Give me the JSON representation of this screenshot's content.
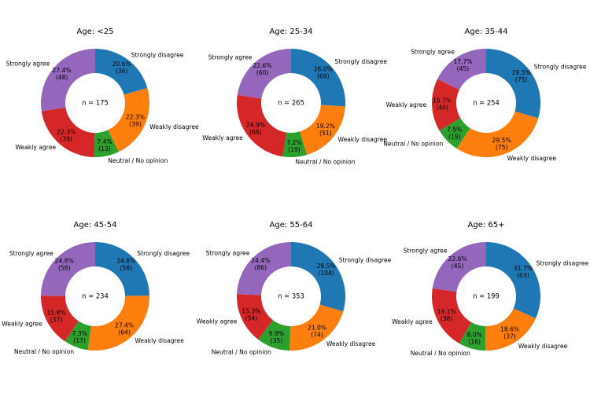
{
  "chart_data": [
    {
      "type": "pie",
      "title": "Age: <25",
      "center_label": "n = 175",
      "categories": [
        "Strongly disagree",
        "Weakly disagree",
        "Neutral / No opinion",
        "Weakly agree",
        "Strongly agree"
      ],
      "values": [
        36,
        39,
        13,
        39,
        48
      ],
      "percent_labels": [
        "20.6%",
        "22.3%",
        "7.4%",
        "22.3%",
        "27.4%"
      ],
      "count_labels": [
        "(36)",
        "(39)",
        "(13)",
        "(39)",
        "(48)"
      ]
    },
    {
      "type": "pie",
      "title": "Age: 25-34",
      "center_label": "n = 265",
      "categories": [
        "Strongly disagree",
        "Weakly disagree",
        "Neutral / No opinion",
        "Weakly agree",
        "Strongly agree"
      ],
      "values": [
        69,
        51,
        19,
        66,
        60
      ],
      "percent_labels": [
        "26.0%",
        "19.2%",
        "7.2%",
        "24.9%",
        "22.6%"
      ],
      "count_labels": [
        "(69)",
        "(51)",
        "(19)",
        "(66)",
        "(60)"
      ]
    },
    {
      "type": "pie",
      "title": "Age: 35-44",
      "center_label": "n = 254",
      "categories": [
        "Strongly disagree",
        "Weakly disagree",
        "Neutral / No opinion",
        "Weakly agree",
        "Strongly agree"
      ],
      "values": [
        75,
        75,
        19,
        40,
        45
      ],
      "percent_labels": [
        "29.5%",
        "29.5%",
        "7.5%",
        "15.7%",
        "17.7%"
      ],
      "count_labels": [
        "(75)",
        "(75)",
        "(19)",
        "(40)",
        "(45)"
      ]
    },
    {
      "type": "pie",
      "title": "Age: 45-54",
      "center_label": "n = 234",
      "categories": [
        "Strongly disagree",
        "Weakly disagree",
        "Neutral / No opinion",
        "Weakly agree",
        "Strongly agree"
      ],
      "values": [
        58,
        64,
        17,
        37,
        58
      ],
      "percent_labels": [
        "24.8%",
        "27.4%",
        "7.3%",
        "15.8%",
        "24.8%"
      ],
      "count_labels": [
        "(58)",
        "(64)",
        "(17)",
        "(37)",
        "(58)"
      ]
    },
    {
      "type": "pie",
      "title": "Age: 55-64",
      "center_label": "n = 353",
      "categories": [
        "Strongly disagree",
        "Weakly disagree",
        "Neutral / No opinion",
        "Weakly agree",
        "Strongly agree"
      ],
      "values": [
        104,
        74,
        35,
        54,
        86
      ],
      "percent_labels": [
        "29.5%",
        "21.0%",
        "9.9%",
        "15.3%",
        "24.4%"
      ],
      "count_labels": [
        "(104)",
        "(74)",
        "(35)",
        "(54)",
        "(86)"
      ]
    },
    {
      "type": "pie",
      "title": "Age: 65+",
      "center_label": "n = 199",
      "categories": [
        "Strongly disagree",
        "Weakly disagree",
        "Neutral / No opinion",
        "Weakly agree",
        "Strongly agree"
      ],
      "values": [
        63,
        37,
        16,
        38,
        45
      ],
      "percent_labels": [
        "31.7%",
        "18.6%",
        "8.0%",
        "19.1%",
        "22.6%"
      ],
      "count_labels": [
        "(63)",
        "(37)",
        "(16)",
        "(38)",
        "(45)"
      ]
    }
  ],
  "colors": [
    "#1f77b4",
    "#ff7f0e",
    "#2ca02c",
    "#d62728",
    "#9467bd"
  ]
}
